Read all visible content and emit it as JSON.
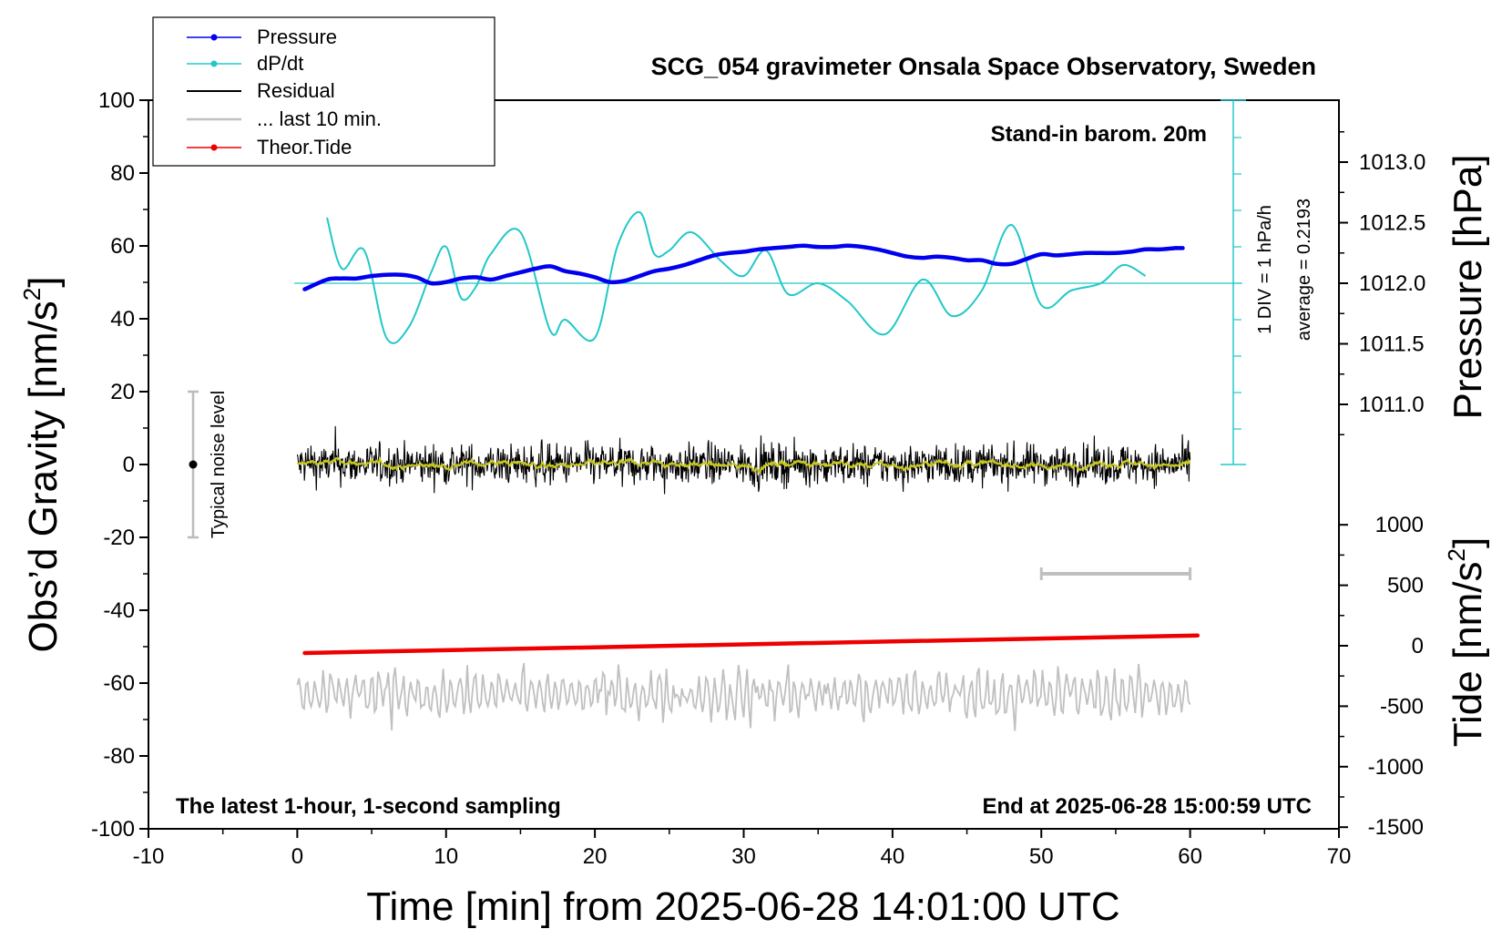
{
  "chart_data": {
    "type": "line",
    "title": "SCG_054 gravimeter Onsala Space Observatory, Sweden",
    "xlabel": "Time [min] from 2025-06-28 14:01:00 UTC",
    "ylabel": "Obs’d Gravity [nm/s²]",
    "ylabel_base": "Obs’d Gravity [nm/s",
    "ylabel_sup": "2",
    "ylabel_end": "]",
    "y2label": "Pressure [hPa]",
    "y3label": "Tide [nm/s²]",
    "y3label_base": "Tide [nm/s",
    "y3label_sup": "2",
    "y3label_end": "]",
    "xlim": [
      -10,
      70
    ],
    "ylim": [
      -100,
      100
    ],
    "x_ticks": [
      "-10",
      "0",
      "10",
      "20",
      "30",
      "40",
      "50",
      "60",
      "70"
    ],
    "y_ticks": [
      "100",
      "80",
      "60",
      "40",
      "20",
      "0",
      "-20",
      "-40",
      "-60",
      "-80",
      "-100"
    ],
    "pressure_ticks": [
      "1013.0",
      "1012.5",
      "1012.0",
      "1011.5",
      "1011.0"
    ],
    "tide_ticks": [
      "1000",
      "500",
      "0",
      "-500",
      "-1000",
      "-1500"
    ],
    "grid": false,
    "legend_position": "top-left",
    "legend": [
      "Pressure",
      "dP/dt",
      "Residual",
      "... last 10 min.",
      "Theor.Tide"
    ],
    "annotations": {
      "barometer": "Stand-in barom. 20m",
      "div_scale": "1 DIV = 1 hPa/h",
      "average": "average = 0.2193",
      "noise": "Typical noise level",
      "bottom_left": "The latest 1-hour, 1-second sampling",
      "bottom_right": "End at 2025-06-28 15:00:59 UTC"
    },
    "colors": {
      "pressure": "#0000ee",
      "dpdt": "#22c8c8",
      "residual": "#000000",
      "residual_smooth": "#c8c820",
      "last10": "#c0c0c0",
      "tide": "#ee0000"
    },
    "noise_level": {
      "x": -7,
      "center": 0,
      "range": [
        -20,
        20
      ]
    },
    "last_10_min_window": [
      50,
      60
    ],
    "series": [
      {
        "name": "Pressure",
        "unit": "hPa",
        "x": [
          0.5,
          2,
          3,
          4,
          5,
          6,
          7,
          8,
          9,
          10,
          11,
          12,
          13,
          14,
          15,
          16,
          17,
          18,
          19,
          20,
          21,
          22,
          23,
          24,
          25,
          26,
          27,
          28,
          29,
          30,
          31,
          32,
          33,
          34,
          35,
          36,
          37,
          38,
          39,
          40,
          41,
          42,
          43,
          44,
          45,
          46,
          47,
          48,
          49,
          50,
          51,
          52,
          53,
          54,
          55,
          56,
          57,
          58,
          59,
          59.5
        ],
        "values": [
          1011.95,
          1012.03,
          1012.04,
          1012.04,
          1012.06,
          1012.07,
          1012.07,
          1012.05,
          1012.0,
          1012.01,
          1012.04,
          1012.05,
          1012.03,
          1012.06,
          1012.09,
          1012.12,
          1012.14,
          1012.1,
          1012.08,
          1012.05,
          1012.01,
          1012.02,
          1012.06,
          1012.1,
          1012.12,
          1012.15,
          1012.19,
          1012.23,
          1012.25,
          1012.26,
          1012.28,
          1012.29,
          1012.3,
          1012.31,
          1012.3,
          1012.3,
          1012.31,
          1012.3,
          1012.28,
          1012.25,
          1012.22,
          1012.21,
          1012.22,
          1012.21,
          1012.19,
          1012.19,
          1012.16,
          1012.16,
          1012.2,
          1012.24,
          1012.23,
          1012.24,
          1012.25,
          1012.25,
          1012.25,
          1012.26,
          1012.28,
          1012.28,
          1012.29,
          1012.29
        ]
      },
      {
        "name": "dP/dt",
        "unit": "hPa/h",
        "x": [
          2,
          3,
          4.5,
          6,
          7.5,
          9,
          10,
          11,
          12,
          13,
          15,
          17,
          18,
          20,
          21.5,
          23,
          24,
          25,
          26.5,
          28.5,
          30,
          31.5,
          33,
          35,
          37,
          39.5,
          42,
          44,
          46,
          48,
          50,
          52,
          54,
          55.5,
          57
        ],
        "values": [
          1.8,
          0.4,
          0.9,
          -1.5,
          -1.2,
          0.3,
          1.0,
          -0.4,
          -0.1,
          0.8,
          1.4,
          -1.3,
          -1.0,
          -1.5,
          1.0,
          1.95,
          0.8,
          0.9,
          1.4,
          0.6,
          0.2,
          0.9,
          -0.3,
          0.0,
          -0.5,
          -1.4,
          0.1,
          -0.9,
          -0.2,
          1.6,
          -0.6,
          -0.2,
          0.0,
          0.5,
          0.2
        ]
      },
      {
        "name": "Residual",
        "unit": "nm/s²",
        "x": [
          0,
          60
        ],
        "values": [
          0,
          0
        ],
        "band": [
          -6,
          6
        ]
      },
      {
        "name": "... last 10 min.",
        "unit": "nm/s²",
        "x": [
          0,
          60
        ],
        "values": [
          -63,
          -63
        ]
      },
      {
        "name": "Theor.Tide",
        "unit": "nm/s²",
        "x": [
          0.5,
          60.5
        ],
        "values": [
          -60,
          85
        ]
      }
    ]
  }
}
